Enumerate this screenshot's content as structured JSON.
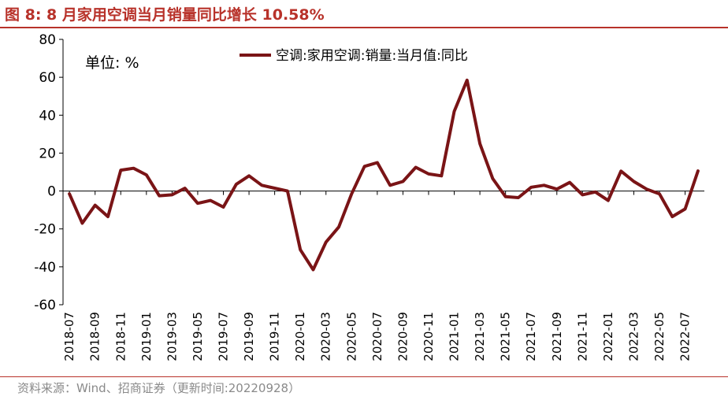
{
  "header": {
    "title": "图 8:  8 月家用空调当月销量同比增长 10.58%"
  },
  "footer": {
    "source": "资料来源：Wind、招商证券（更新时间:20220928）"
  },
  "colors": {
    "accent": "#b8322a",
    "series": "#7a1416"
  },
  "chart_data": {
    "type": "line",
    "unit_label": "单位:  %",
    "ylim": [
      -60,
      80
    ],
    "yticks": [
      "80",
      "60",
      "40",
      "20",
      "0",
      "-20",
      "-40",
      "-60"
    ],
    "xtick_labels": [
      "2018-07",
      "2018-09",
      "2018-11",
      "2019-01",
      "2019-03",
      "2019-05",
      "2019-07",
      "2019-09",
      "2019-11",
      "2020-01",
      "2020-03",
      "2020-05",
      "2020-07",
      "2020-09",
      "2020-11",
      "2021-01",
      "2021-03",
      "2021-05",
      "2021-07",
      "2021-09",
      "2021-11",
      "2022-01",
      "2022-03",
      "2022-05",
      "2022-07"
    ],
    "legend_position": "top-center",
    "grid": false,
    "x": [
      "2018-07",
      "2018-08",
      "2018-09",
      "2018-10",
      "2018-11",
      "2018-12",
      "2019-01",
      "2019-02",
      "2019-03",
      "2019-04",
      "2019-05",
      "2019-06",
      "2019-07",
      "2019-08",
      "2019-09",
      "2019-10",
      "2019-11",
      "2019-12",
      "2020-01",
      "2020-02",
      "2020-03",
      "2020-04",
      "2020-05",
      "2020-06",
      "2020-07",
      "2020-08",
      "2020-09",
      "2020-10",
      "2020-11",
      "2020-12",
      "2021-01",
      "2021-02",
      "2021-03",
      "2021-04",
      "2021-05",
      "2021-06",
      "2021-07",
      "2021-08",
      "2021-09",
      "2021-10",
      "2021-11",
      "2021-12",
      "2022-01",
      "2022-02",
      "2022-03",
      "2022-04",
      "2022-05",
      "2022-06",
      "2022-07",
      "2022-08"
    ],
    "series": [
      {
        "name": "空调:家用空调:销量:当月值:同比",
        "values": [
          -1.5,
          -17,
          -7.5,
          -13.5,
          11,
          12,
          8.5,
          -2.5,
          -2,
          1.5,
          -6.5,
          -5,
          -8.5,
          3.5,
          8,
          3,
          1.5,
          0,
          -31,
          -41.5,
          -27,
          -19,
          -1.5,
          13,
          15,
          3,
          5,
          12.5,
          9,
          8,
          42,
          58.5,
          25,
          6.5,
          -3,
          -3.5,
          2,
          3,
          1,
          4.5,
          -2,
          -0.5,
          -5,
          10.5,
          5,
          1,
          -1.5,
          -13.5,
          -9.5,
          10.58
        ]
      }
    ]
  }
}
